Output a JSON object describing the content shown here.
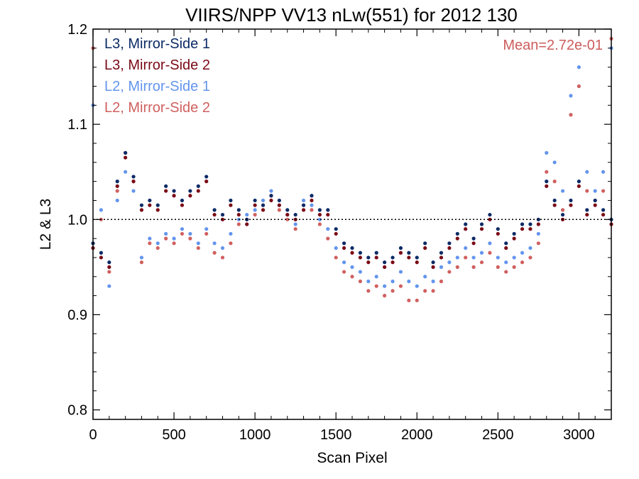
{
  "chart_data": {
    "type": "scatter",
    "title": "VIIRS/NPP VV13 nLw(551) for 2012 130",
    "xlabel": "Scan Pixel",
    "ylabel": "L2 & L3",
    "xlim": [
      0,
      3200
    ],
    "ylim": [
      0.79,
      1.2
    ],
    "xticks": [
      0,
      500,
      1000,
      1500,
      2000,
      2500,
      3000
    ],
    "yticks": [
      0.8,
      0.9,
      1.0,
      1.1,
      1.2
    ],
    "xtick_labels": [
      "0",
      "500",
      "1000",
      "1500",
      "2000",
      "2500",
      "3000"
    ],
    "ytick_labels": [
      "0.8",
      "0.9",
      "1.0",
      "1.1",
      "1.2"
    ],
    "reference_line": 1.0,
    "annotation": "Mean=2.72e-01",
    "annotation_color": "#CD5C5C",
    "legend_position": "top-left",
    "series": [
      {
        "name": "L3, Mirror-Side 1",
        "color": "#0B2A66",
        "x": [
          0,
          50,
          100,
          150,
          200,
          250,
          300,
          350,
          400,
          450,
          500,
          550,
          600,
          650,
          700,
          750,
          800,
          850,
          900,
          950,
          1000,
          1050,
          1100,
          1150,
          1200,
          1250,
          1300,
          1350,
          1400,
          1450,
          1500,
          1550,
          1600,
          1650,
          1700,
          1750,
          1800,
          1850,
          1900,
          1950,
          2000,
          2050,
          2100,
          2150,
          2200,
          2250,
          2300,
          2350,
          2400,
          2450,
          2500,
          2550,
          2600,
          2650,
          2700,
          2750,
          2800,
          2850,
          2900,
          2950,
          3000,
          3050,
          3100,
          3150,
          3200
        ],
        "y": [
          0.975,
          0.965,
          0.955,
          1.04,
          1.07,
          1.045,
          1.015,
          1.02,
          1.015,
          1.035,
          1.03,
          1.02,
          1.03,
          1.035,
          1.045,
          1.01,
          1.005,
          1.02,
          1.01,
          1.0,
          1.02,
          1.015,
          1.025,
          1.02,
          1.01,
          1.005,
          1.015,
          1.025,
          1.01,
          1.01,
          0.99,
          0.975,
          0.97,
          0.965,
          0.96,
          0.965,
          0.955,
          0.96,
          0.97,
          0.965,
          0.96,
          0.975,
          0.955,
          0.965,
          0.975,
          0.985,
          0.995,
          0.98,
          0.995,
          1.005,
          0.99,
          0.975,
          0.985,
          0.995,
          0.995,
          1.0,
          1.04,
          1.02,
          1.005,
          1.02,
          1.04,
          1.01,
          1.02,
          1.01,
          1.0
        ]
      },
      {
        "name": "L3, Mirror-Side 2",
        "color": "#7A0A16",
        "x": [
          0,
          50,
          100,
          150,
          200,
          250,
          300,
          350,
          400,
          450,
          500,
          550,
          600,
          650,
          700,
          750,
          800,
          850,
          900,
          950,
          1000,
          1050,
          1100,
          1150,
          1200,
          1250,
          1300,
          1350,
          1400,
          1450,
          1500,
          1550,
          1600,
          1650,
          1700,
          1750,
          1800,
          1850,
          1900,
          1950,
          2000,
          2050,
          2100,
          2150,
          2200,
          2250,
          2300,
          2350,
          2400,
          2450,
          2500,
          2550,
          2600,
          2650,
          2700,
          2750,
          2800,
          2850,
          2900,
          2950,
          3000,
          3050,
          3100,
          3150,
          3200
        ],
        "y": [
          0.97,
          0.96,
          0.95,
          1.035,
          1.065,
          1.04,
          1.01,
          1.015,
          1.01,
          1.03,
          1.025,
          1.015,
          1.025,
          1.03,
          1.04,
          1.005,
          1.0,
          1.015,
          1.005,
          0.995,
          1.015,
          1.01,
          1.02,
          1.015,
          1.005,
          1.0,
          1.01,
          1.02,
          1.005,
          1.005,
          0.985,
          0.97,
          0.965,
          0.96,
          0.955,
          0.96,
          0.95,
          0.955,
          0.965,
          0.96,
          0.955,
          0.97,
          0.95,
          0.96,
          0.97,
          0.98,
          0.99,
          0.975,
          0.99,
          1.0,
          0.985,
          0.97,
          0.98,
          0.99,
          0.99,
          0.995,
          1.035,
          1.015,
          1.0,
          1.015,
          1.035,
          1.005,
          1.015,
          1.005,
          0.995
        ]
      },
      {
        "name": "L2, Mirror-Side 1",
        "color": "#6495ED",
        "x": [
          0,
          50,
          100,
          150,
          200,
          250,
          300,
          350,
          400,
          450,
          500,
          550,
          600,
          650,
          700,
          750,
          800,
          850,
          900,
          950,
          1000,
          1050,
          1100,
          1150,
          1200,
          1250,
          1300,
          1350,
          1400,
          1450,
          1500,
          1550,
          1600,
          1650,
          1700,
          1750,
          1800,
          1850,
          1900,
          1950,
          2000,
          2050,
          2100,
          2150,
          2200,
          2250,
          2300,
          2350,
          2400,
          2450,
          2500,
          2550,
          2600,
          2650,
          2700,
          2750,
          2800,
          2850,
          2900,
          2950,
          3000,
          3050,
          3100,
          3150,
          3200
        ],
        "y": [
          1.12,
          1.01,
          0.93,
          1.02,
          1.05,
          1.03,
          0.96,
          0.98,
          0.975,
          0.985,
          0.98,
          0.99,
          0.985,
          0.975,
          0.99,
          0.975,
          0.97,
          0.985,
          1.0,
          1.005,
          1.01,
          1.02,
          1.03,
          1.015,
          1.005,
          0.995,
          1.02,
          1.015,
          1.0,
          0.99,
          0.97,
          0.955,
          0.95,
          0.945,
          0.935,
          0.94,
          0.93,
          0.935,
          0.945,
          0.935,
          0.93,
          0.94,
          0.935,
          0.95,
          0.955,
          0.96,
          0.97,
          0.96,
          0.965,
          0.975,
          0.96,
          0.955,
          0.96,
          0.965,
          0.97,
          0.985,
          1.07,
          1.06,
          1.03,
          1.13,
          1.16,
          1.05,
          1.03,
          1.05,
          1.18
        ]
      },
      {
        "name": "L2, Mirror-Side 2",
        "color": "#D06060",
        "x": [
          0,
          50,
          100,
          150,
          200,
          250,
          300,
          350,
          400,
          450,
          500,
          550,
          600,
          650,
          700,
          750,
          800,
          850,
          900,
          950,
          1000,
          1050,
          1100,
          1150,
          1200,
          1250,
          1300,
          1350,
          1400,
          1450,
          1500,
          1550,
          1600,
          1650,
          1700,
          1750,
          1800,
          1850,
          1900,
          1950,
          2000,
          2050,
          2100,
          2150,
          2200,
          2250,
          2300,
          2350,
          2400,
          2450,
          2500,
          2550,
          2600,
          2650,
          2700,
          2750,
          2800,
          2850,
          2900,
          2950,
          3000,
          3050,
          3100,
          3150,
          3200
        ],
        "y": [
          1.18,
          1.0,
          0.945,
          1.03,
          1.07,
          1.04,
          0.955,
          0.975,
          0.97,
          0.98,
          0.975,
          0.985,
          0.98,
          0.97,
          0.985,
          0.965,
          0.96,
          0.975,
          0.995,
          1.0,
          1.005,
          1.015,
          1.025,
          1.01,
          1.0,
          0.99,
          1.015,
          1.01,
          0.995,
          0.98,
          0.96,
          0.945,
          0.94,
          0.935,
          0.925,
          0.93,
          0.92,
          0.925,
          0.93,
          0.915,
          0.915,
          0.925,
          0.925,
          0.935,
          0.945,
          0.95,
          0.96,
          0.95,
          0.955,
          0.965,
          0.95,
          0.945,
          0.95,
          0.955,
          0.96,
          0.975,
          1.05,
          1.04,
          1.01,
          1.11,
          1.14,
          1.03,
          1.02,
          1.03,
          1.19
        ]
      }
    ]
  }
}
